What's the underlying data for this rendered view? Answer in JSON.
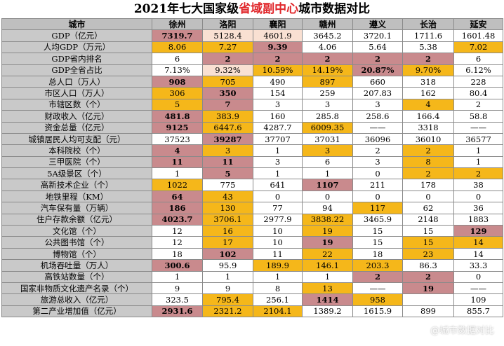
{
  "title_prefix": "2021年七大国家级",
  "title_highlight": "省域副中心",
  "title_suffix": "城市数据对比",
  "header": [
    "城市",
    "徐州",
    "洛阳",
    "襄阳",
    "赣州",
    "遵义",
    "长治",
    "延安"
  ],
  "rows": [
    {
      "label": "GDP（亿元）",
      "cells": [
        [
          "7319.7",
          "d",
          1
        ],
        [
          "5128.4",
          "l",
          0
        ],
        [
          "4601.9",
          "l",
          0
        ],
        [
          "3645.2",
          "",
          0
        ],
        [
          "3720.1",
          "",
          0
        ],
        [
          "1711.6",
          "",
          0
        ],
        [
          "1601.48",
          "",
          0
        ]
      ]
    },
    {
      "label": "人均GDP（万元）",
      "cells": [
        [
          "8.06",
          "o",
          0
        ],
        [
          "7.27",
          "o",
          0
        ],
        [
          "9.39",
          "d",
          1
        ],
        [
          "4.06",
          "",
          0
        ],
        [
          "5.64",
          "",
          0
        ],
        [
          "5.38",
          "",
          0
        ],
        [
          "7.02",
          "o",
          0
        ]
      ]
    },
    {
      "label": "GDP省内排名",
      "cells": [
        [
          "6",
          "",
          0
        ],
        [
          "2",
          "d",
          1
        ],
        [
          "2",
          "d",
          1
        ],
        [
          "2",
          "d",
          1
        ],
        [
          "2",
          "d",
          1
        ],
        [
          "2",
          "d",
          1
        ],
        [
          "6",
          "",
          0
        ]
      ]
    },
    {
      "label": "GDP全省占比",
      "cells": [
        [
          "7.13%",
          "",
          0
        ],
        [
          "9.32%",
          "l",
          0
        ],
        [
          "10.59%",
          "o",
          0
        ],
        [
          "14.19%",
          "o",
          0
        ],
        [
          "20.87%",
          "d",
          1
        ],
        [
          "9.70%",
          "o",
          0
        ],
        [
          "6.12%",
          "",
          0
        ]
      ]
    },
    {
      "label": "总人口（万人）",
      "cells": [
        [
          "908",
          "d",
          1
        ],
        [
          "705",
          "o",
          0
        ],
        [
          "490",
          "",
          0
        ],
        [
          "897",
          "o",
          0
        ],
        [
          "660",
          "",
          0
        ],
        [
          "318",
          "",
          0
        ],
        [
          "228",
          "",
          0
        ]
      ]
    },
    {
      "label": "市区人口（万人）",
      "cells": [
        [
          "306",
          "o",
          0
        ],
        [
          "350",
          "d",
          1
        ],
        [
          "154",
          "",
          0
        ],
        [
          "259",
          "",
          0
        ],
        [
          "207.83",
          "",
          0
        ],
        [
          "162",
          "",
          0
        ],
        [
          "80.4",
          "",
          0
        ]
      ]
    },
    {
      "label": "市辖区数（个）",
      "cells": [
        [
          "5",
          "o",
          0
        ],
        [
          "7",
          "d",
          1
        ],
        [
          "3",
          "",
          0
        ],
        [
          "3",
          "",
          0
        ],
        [
          "3",
          "",
          0
        ],
        [
          "4",
          "o",
          0
        ],
        [
          "2",
          "",
          0
        ]
      ]
    },
    {
      "label": "财政收入（亿元）",
      "cells": [
        [
          "481.8",
          "d",
          1
        ],
        [
          "383.9",
          "o",
          0
        ],
        [
          "160",
          "",
          0
        ],
        [
          "285.8",
          "",
          0
        ],
        [
          "258.6",
          "",
          0
        ],
        [
          "166.4",
          "",
          0
        ],
        [
          "58.8",
          "",
          0
        ]
      ]
    },
    {
      "label": "资金总量（亿元）",
      "cells": [
        [
          "9125",
          "d",
          1
        ],
        [
          "6447.6",
          "o",
          0
        ],
        [
          "4287.7",
          "",
          0
        ],
        [
          "6009.35",
          "o",
          0
        ],
        [
          "——",
          "",
          0
        ],
        [
          "3318",
          "",
          0
        ],
        [
          "——",
          "",
          0
        ]
      ]
    },
    {
      "label": "城镇居民人均可支配（元）",
      "cells": [
        [
          "37523",
          "",
          0
        ],
        [
          "39287",
          "d",
          1
        ],
        [
          "37707",
          "",
          0
        ],
        [
          "37031",
          "",
          0
        ],
        [
          "36096",
          "",
          0
        ],
        [
          "36010",
          "",
          0
        ],
        [
          "36577",
          "",
          0
        ]
      ]
    },
    {
      "label": "本科院校（个）",
      "cells": [
        [
          "4",
          "d",
          1
        ],
        [
          "3",
          "o",
          0
        ],
        [
          "1",
          "",
          0
        ],
        [
          "3",
          "o",
          0
        ],
        [
          "2",
          "",
          0
        ],
        [
          "2",
          "o",
          0
        ],
        [
          "1",
          "",
          0
        ]
      ]
    },
    {
      "label": "三甲医院（个）",
      "cells": [
        [
          "11",
          "d",
          1
        ],
        [
          "11",
          "d",
          1
        ],
        [
          "3",
          "",
          0
        ],
        [
          "6",
          "",
          0
        ],
        [
          "3",
          "",
          0
        ],
        [
          "8",
          "o",
          0
        ],
        [
          "1",
          "",
          0
        ]
      ]
    },
    {
      "label": "5A级景区（个）",
      "cells": [
        [
          "1",
          "",
          0
        ],
        [
          "5",
          "d",
          1
        ],
        [
          "1",
          "",
          0
        ],
        [
          "1",
          "",
          0
        ],
        [
          "0",
          "",
          0
        ],
        [
          "2",
          "o",
          0
        ],
        [
          "2",
          "o",
          0
        ]
      ]
    },
    {
      "label": "高新技术企业（个）",
      "cells": [
        [
          "1022",
          "o",
          0
        ],
        [
          "775",
          "",
          0
        ],
        [
          "641",
          "",
          0
        ],
        [
          "1107",
          "d",
          1
        ],
        [
          "211",
          "",
          0
        ],
        [
          "178",
          "",
          0
        ],
        [
          "38",
          "",
          0
        ]
      ]
    },
    {
      "label": "地铁里程（KM）",
      "cells": [
        [
          "64",
          "d",
          1
        ],
        [
          "43",
          "o",
          0
        ],
        [
          "0",
          "",
          0
        ],
        [
          "0",
          "",
          0
        ],
        [
          "0",
          "",
          0
        ],
        [
          "0",
          "",
          0
        ],
        [
          "0",
          "",
          0
        ]
      ]
    },
    {
      "label": "汽车保有量（万辆）",
      "cells": [
        [
          "186",
          "d",
          1
        ],
        [
          "130",
          "o",
          0
        ],
        [
          "77",
          "",
          0
        ],
        [
          "94",
          "",
          0
        ],
        [
          "117",
          "o",
          0
        ],
        [
          "62",
          "",
          0
        ],
        [
          "36",
          "",
          0
        ]
      ]
    },
    {
      "label": "住户存款余额（亿元）",
      "cells": [
        [
          "4023.7",
          "d",
          1
        ],
        [
          "3706.1",
          "o",
          0
        ],
        [
          "2977.9",
          "",
          0
        ],
        [
          "3838.22",
          "o",
          0
        ],
        [
          "3465.9",
          "",
          0
        ],
        [
          "2148",
          "",
          0
        ],
        [
          "1883",
          "",
          0
        ]
      ]
    },
    {
      "label": "文化馆（个）",
      "cells": [
        [
          "12",
          "",
          0
        ],
        [
          "16",
          "o",
          0
        ],
        [
          "10",
          "",
          0
        ],
        [
          "19",
          "o",
          0
        ],
        [
          "15",
          "",
          0
        ],
        [
          "15",
          "",
          0
        ],
        [
          "129",
          "d",
          1
        ]
      ]
    },
    {
      "label": "公共图书馆（个）",
      "cells": [
        [
          "12",
          "",
          0
        ],
        [
          "17",
          "o",
          0
        ],
        [
          "10",
          "",
          0
        ],
        [
          "19",
          "d",
          1
        ],
        [
          "15",
          "",
          0
        ],
        [
          "15",
          "o",
          0
        ],
        [
          "14",
          "o",
          0
        ]
      ]
    },
    {
      "label": "博物馆（个）",
      "cells": [
        [
          "18",
          "",
          0
        ],
        [
          "102",
          "d",
          1
        ],
        [
          "11",
          "",
          0
        ],
        [
          "22",
          "o",
          0
        ],
        [
          "18",
          "",
          0
        ],
        [
          "23",
          "o",
          0
        ],
        [
          "14",
          "",
          0
        ]
      ]
    },
    {
      "label": "机场吞吐量（万人）",
      "cells": [
        [
          "300.6",
          "d",
          1
        ],
        [
          "95.9",
          "",
          0
        ],
        [
          "189.9",
          "o",
          0
        ],
        [
          "146.1",
          "o",
          0
        ],
        [
          "203.3",
          "o",
          0
        ],
        [
          "86.3",
          "",
          0
        ],
        [
          "33.3",
          "",
          0
        ]
      ]
    },
    {
      "label": "高铁站数量（个）",
      "cells": [
        [
          "1",
          "",
          0
        ],
        [
          "1",
          "",
          0
        ],
        [
          "1",
          "",
          0
        ],
        [
          "1",
          "",
          0
        ],
        [
          "2",
          "d",
          1
        ],
        [
          "2",
          "d",
          1
        ],
        [
          "0",
          "",
          0
        ]
      ]
    },
    {
      "label": "国家非物质文化遗产名录（个）",
      "cells": [
        [
          "9",
          "",
          0
        ],
        [
          "9",
          "",
          0
        ],
        [
          "8",
          "",
          0
        ],
        [
          "13",
          "o",
          0
        ],
        [
          "——",
          "",
          0
        ],
        [
          "19",
          "d",
          1
        ],
        [
          "——",
          "",
          0
        ]
      ]
    },
    {
      "label": "旅游总收入（亿元）",
      "cells": [
        [
          "323.5",
          "",
          0
        ],
        [
          "795.4",
          "o",
          0
        ],
        [
          "256.1",
          "",
          0
        ],
        [
          "1414",
          "d",
          1
        ],
        [
          "958",
          "o",
          0
        ],
        [
          "",
          "",
          0
        ],
        [
          "109",
          "",
          0
        ]
      ]
    },
    {
      "label": "第二产业增加值（亿元）",
      "cells": [
        [
          "2931.6",
          "d",
          1
        ],
        [
          "2321.2",
          "o",
          0
        ],
        [
          "2104.1",
          "o",
          0
        ],
        [
          "1389.2",
          "",
          0
        ],
        [
          "1615.9",
          "",
          0
        ],
        [
          "899",
          "",
          0
        ],
        [
          "855.7",
          "",
          0
        ]
      ]
    }
  ],
  "watermark": "@城市数据对比"
}
